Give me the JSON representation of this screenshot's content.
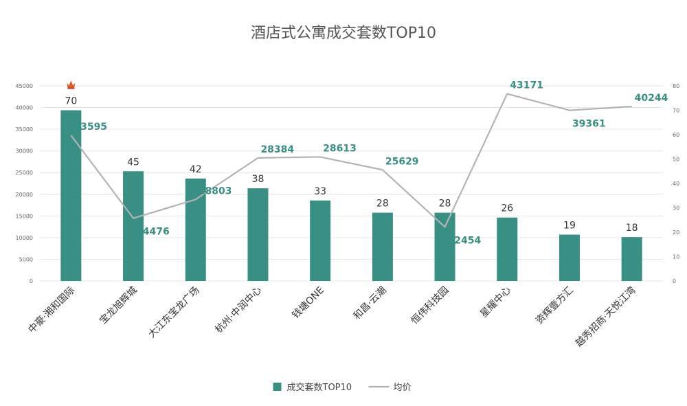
{
  "chart_data": {
    "type": "bar",
    "title": "酒店式公寓成交套数TOP10",
    "categories": [
      "中豪·湘和国际",
      "宝龙旭辉城",
      "大江东宝龙广场",
      "杭州·中润中心",
      "钱塘ONE",
      "和昌·云潮",
      "恒伟科技园",
      "星耀中心",
      "资辉壹方汇",
      "越秀招商·天悦江湾"
    ],
    "series": [
      {
        "name": "成交套数TOP10",
        "type": "bar",
        "axis": "right",
        "color": "#3a8f84",
        "values": [
          70,
          45,
          42,
          38,
          33,
          28,
          28,
          26,
          19,
          18
        ]
      },
      {
        "name": "均价",
        "type": "line",
        "axis": "left",
        "color": "#b3b3b3",
        "values": [
          33595,
          14476,
          18803,
          28384,
          28613,
          25629,
          12454,
          43171,
          39361,
          40244
        ]
      }
    ],
    "left_axis": {
      "min": 0,
      "max": 45000,
      "step": 5000
    },
    "right_axis": {
      "min": 0,
      "max": 80,
      "step": 10
    },
    "grid": true,
    "legend_position": "bottom",
    "label_color_bar": "#333333",
    "label_color_line": "#3a8f84",
    "crown_icon": "crown-icon"
  }
}
